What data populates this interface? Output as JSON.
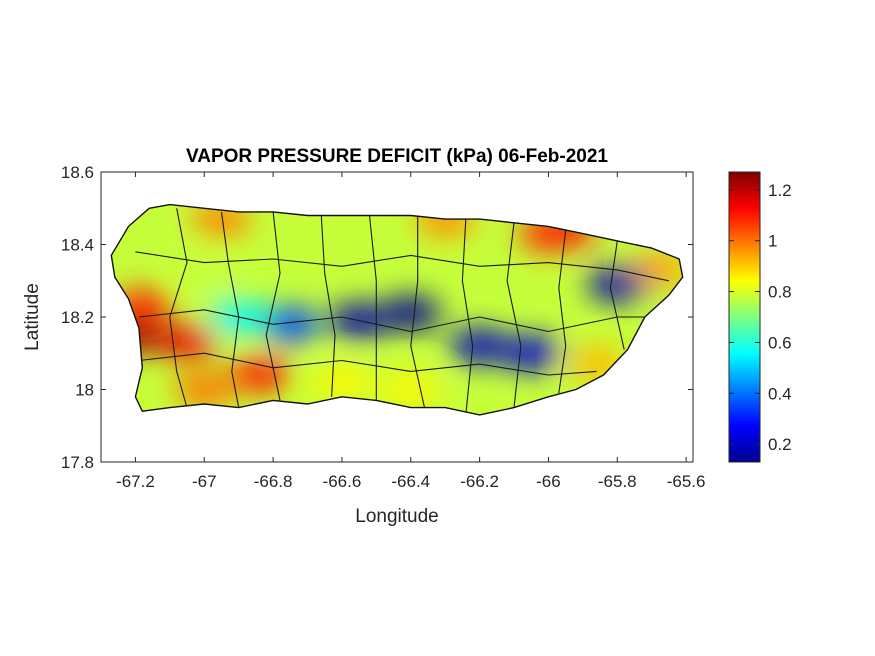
{
  "figure": {
    "title": "VAPOR PRESSURE DEFICIT (kPa) 06-Feb-2021",
    "xlabel": "Longitude",
    "ylabel": "Latitude"
  },
  "chart_data": {
    "type": "heatmap",
    "title": "VAPOR PRESSURE DEFICIT (kPa) 06-Feb-2021",
    "xlabel": "Longitude",
    "ylabel": "Latitude",
    "xlim": [
      -67.3,
      -65.58
    ],
    "ylim": [
      17.8,
      18.6
    ],
    "x_ticks": [
      -67.2,
      -67,
      -66.8,
      -66.6,
      -66.4,
      -66.2,
      -66,
      -65.8,
      -65.6
    ],
    "x_tick_labels": [
      "-67.2",
      "-67",
      "-66.8",
      "-66.6",
      "-66.4",
      "-66.2",
      "-66",
      "-65.8",
      "-65.6"
    ],
    "y_ticks": [
      17.8,
      18,
      18.2,
      18.4,
      18.6
    ],
    "y_tick_labels": [
      "17.8",
      "18",
      "18.2",
      "18.4",
      "18.6"
    ],
    "colorbar": {
      "colormap": "jet",
      "range": [
        0.13,
        1.27
      ],
      "ticks": [
        0.2,
        0.4,
        0.6,
        0.8,
        1,
        1.2
      ],
      "tick_labels": [
        "0.2",
        "0.4",
        "0.6",
        "0.8",
        "1",
        "1.2"
      ]
    },
    "grid": false,
    "coastline": [
      [
        -67.27,
        18.37
      ],
      [
        -67.22,
        18.45
      ],
      [
        -67.16,
        18.5
      ],
      [
        -67.1,
        18.51
      ],
      [
        -67.0,
        18.5
      ],
      [
        -66.9,
        18.49
      ],
      [
        -66.8,
        18.49
      ],
      [
        -66.7,
        18.48
      ],
      [
        -66.6,
        18.48
      ],
      [
        -66.5,
        18.48
      ],
      [
        -66.4,
        18.48
      ],
      [
        -66.3,
        18.47
      ],
      [
        -66.2,
        18.47
      ],
      [
        -66.1,
        18.46
      ],
      [
        -66.0,
        18.45
      ],
      [
        -65.9,
        18.43
      ],
      [
        -65.8,
        18.41
      ],
      [
        -65.7,
        18.39
      ],
      [
        -65.62,
        18.36
      ],
      [
        -65.61,
        18.31
      ],
      [
        -65.65,
        18.26
      ],
      [
        -65.72,
        18.2
      ],
      [
        -65.77,
        18.11
      ],
      [
        -65.84,
        18.04
      ],
      [
        -65.92,
        18.0
      ],
      [
        -66.0,
        17.98
      ],
      [
        -66.1,
        17.95
      ],
      [
        -66.2,
        17.93
      ],
      [
        -66.3,
        17.95
      ],
      [
        -66.4,
        17.95
      ],
      [
        -66.5,
        17.97
      ],
      [
        -66.6,
        17.98
      ],
      [
        -66.7,
        17.96
      ],
      [
        -66.8,
        17.97
      ],
      [
        -66.9,
        17.95
      ],
      [
        -67.0,
        17.96
      ],
      [
        -67.1,
        17.95
      ],
      [
        -67.18,
        17.94
      ],
      [
        -67.2,
        17.98
      ],
      [
        -67.18,
        18.06
      ],
      [
        -67.19,
        18.17
      ],
      [
        -67.22,
        18.25
      ],
      [
        -67.26,
        18.31
      ]
    ],
    "municipal_boundaries": [
      [
        [
          -67.08,
          18.5
        ],
        [
          -67.05,
          18.35
        ],
        [
          -67.1,
          18.2
        ],
        [
          -67.08,
          18.05
        ],
        [
          -67.05,
          17.95
        ]
      ],
      [
        [
          -66.95,
          18.49
        ],
        [
          -66.93,
          18.35
        ],
        [
          -66.9,
          18.2
        ],
        [
          -66.92,
          18.05
        ],
        [
          -66.9,
          17.95
        ]
      ],
      [
        [
          -66.8,
          18.49
        ],
        [
          -66.78,
          18.32
        ],
        [
          -66.82,
          18.15
        ],
        [
          -66.78,
          17.97
        ]
      ],
      [
        [
          -66.66,
          18.48
        ],
        [
          -66.65,
          18.32
        ],
        [
          -66.62,
          18.15
        ],
        [
          -66.63,
          17.98
        ]
      ],
      [
        [
          -66.52,
          18.48
        ],
        [
          -66.5,
          18.3
        ],
        [
          -66.5,
          18.12
        ],
        [
          -66.5,
          17.97
        ]
      ],
      [
        [
          -66.38,
          18.48
        ],
        [
          -66.38,
          18.3
        ],
        [
          -66.4,
          18.12
        ],
        [
          -66.36,
          17.95
        ]
      ],
      [
        [
          -66.24,
          18.47
        ],
        [
          -66.25,
          18.3
        ],
        [
          -66.22,
          18.12
        ],
        [
          -66.24,
          17.93
        ]
      ],
      [
        [
          -66.1,
          18.46
        ],
        [
          -66.12,
          18.3
        ],
        [
          -66.08,
          18.12
        ],
        [
          -66.1,
          17.95
        ]
      ],
      [
        [
          -65.95,
          18.44
        ],
        [
          -65.97,
          18.28
        ],
        [
          -65.95,
          18.12
        ],
        [
          -65.97,
          17.99
        ]
      ],
      [
        [
          -65.8,
          18.41
        ],
        [
          -65.82,
          18.28
        ],
        [
          -65.78,
          18.11
        ]
      ],
      [
        [
          -67.2,
          18.38
        ],
        [
          -67.0,
          18.35
        ],
        [
          -66.8,
          18.36
        ],
        [
          -66.6,
          18.34
        ],
        [
          -66.4,
          18.37
        ],
        [
          -66.2,
          18.34
        ],
        [
          -66.0,
          18.35
        ],
        [
          -65.8,
          18.33
        ],
        [
          -65.65,
          18.3
        ]
      ],
      [
        [
          -67.19,
          18.2
        ],
        [
          -67.0,
          18.22
        ],
        [
          -66.8,
          18.18
        ],
        [
          -66.6,
          18.2
        ],
        [
          -66.4,
          18.16
        ],
        [
          -66.2,
          18.2
        ],
        [
          -66.0,
          18.16
        ],
        [
          -65.8,
          18.2
        ],
        [
          -65.72,
          18.2
        ]
      ],
      [
        [
          -67.19,
          18.08
        ],
        [
          -67.0,
          18.1
        ],
        [
          -66.8,
          18.06
        ],
        [
          -66.6,
          18.08
        ],
        [
          -66.4,
          18.05
        ],
        [
          -66.2,
          18.07
        ],
        [
          -66.0,
          18.04
        ],
        [
          -65.86,
          18.05
        ]
      ]
    ],
    "field_centers": [
      {
        "lon": -67.2,
        "lat": 18.15,
        "value": 1.25
      },
      {
        "lon": -67.05,
        "lat": 18.13,
        "value": 1.15
      },
      {
        "lon": -67.18,
        "lat": 18.23,
        "value": 1.08
      },
      {
        "lon": -66.84,
        "lat": 18.04,
        "value": 1.1
      },
      {
        "lon": -67.0,
        "lat": 18.0,
        "value": 1.0
      },
      {
        "lon": -66.95,
        "lat": 18.47,
        "value": 0.98
      },
      {
        "lon": -66.3,
        "lat": 18.47,
        "value": 0.97
      },
      {
        "lon": -66.0,
        "lat": 18.43,
        "value": 1.08
      },
      {
        "lon": -65.95,
        "lat": 18.44,
        "value": 1.1
      },
      {
        "lon": -65.68,
        "lat": 18.33,
        "value": 0.95
      },
      {
        "lon": -65.86,
        "lat": 18.07,
        "value": 0.92
      },
      {
        "lon": -66.55,
        "lat": 18.19,
        "value": 0.18
      },
      {
        "lon": -66.4,
        "lat": 18.21,
        "value": 0.15
      },
      {
        "lon": -66.2,
        "lat": 18.12,
        "value": 0.2
      },
      {
        "lon": -66.05,
        "lat": 18.1,
        "value": 0.22
      },
      {
        "lon": -65.8,
        "lat": 18.29,
        "value": 0.18
      },
      {
        "lon": -66.75,
        "lat": 18.18,
        "value": 0.35
      },
      {
        "lon": -66.9,
        "lat": 18.2,
        "value": 0.55
      },
      {
        "lon": -67.0,
        "lat": 18.33,
        "value": 0.78
      },
      {
        "lon": -66.6,
        "lat": 18.02,
        "value": 0.85
      },
      {
        "lon": -66.4,
        "lat": 18.0,
        "value": 0.85
      }
    ]
  }
}
